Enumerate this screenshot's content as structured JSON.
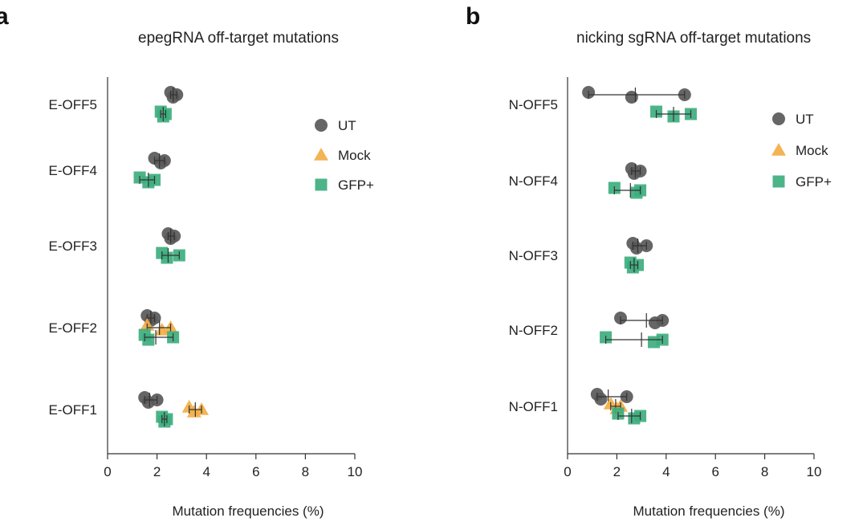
{
  "chart_data": [
    {
      "type": "scatter",
      "panel": "a",
      "title": "epegRNA off-target mutations",
      "xlabel": "Mutation frequencies (%)",
      "xlim": [
        0,
        10
      ],
      "xticks": [
        0,
        2,
        4,
        6,
        8,
        10
      ],
      "categories": [
        "E-OFF5",
        "E-OFF4",
        "E-OFF3",
        "E-OFF2",
        "E-OFF1"
      ],
      "legend": [
        {
          "name": "UT",
          "marker": "circle",
          "color": "#595959"
        },
        {
          "name": "Mock",
          "marker": "triangle",
          "color": "#F2AE45"
        },
        {
          "name": "GFP+",
          "marker": "square",
          "color": "#3DAE7E"
        }
      ],
      "series": [
        {
          "name": "UT",
          "groups": [
            {
              "category": "E-OFF5",
              "values": [
                2.55,
                2.65,
                2.8
              ],
              "mean": 2.65
            },
            {
              "category": "E-OFF4",
              "values": [
                1.9,
                2.15,
                2.3
              ],
              "mean": 2.1
            },
            {
              "category": "E-OFF3",
              "values": [
                2.45,
                2.55,
                2.7
              ],
              "mean": 2.55
            },
            {
              "category": "E-OFF2",
              "values": [
                1.6,
                1.75,
                1.9
              ],
              "mean": 1.75
            },
            {
              "category": "E-OFF1",
              "values": [
                1.5,
                1.65,
                2.0
              ],
              "mean": 1.7
            }
          ]
        },
        {
          "name": "Mock",
          "groups": [
            {
              "category": "E-OFF2",
              "values": [
                1.6,
                2.2,
                2.55
              ],
              "mean": 2.1
            },
            {
              "category": "E-OFF1",
              "values": [
                3.3,
                3.5,
                3.8
              ],
              "mean": 3.55
            }
          ]
        },
        {
          "name": "GFP+",
          "groups": [
            {
              "category": "E-OFF5",
              "values": [
                2.15,
                2.25,
                2.35
              ],
              "mean": 2.25
            },
            {
              "category": "E-OFF4",
              "values": [
                1.3,
                1.65,
                1.9
              ],
              "mean": 1.65
            },
            {
              "category": "E-OFF3",
              "values": [
                2.2,
                2.4,
                2.9
              ],
              "mean": 2.45
            },
            {
              "category": "E-OFF2",
              "values": [
                1.5,
                1.65,
                2.65
              ],
              "mean": 1.95
            },
            {
              "category": "E-OFF1",
              "values": [
                2.2,
                2.3,
                2.4
              ],
              "mean": 2.3
            }
          ]
        }
      ]
    },
    {
      "type": "scatter",
      "panel": "b",
      "title": "nicking sgRNA off-target mutations",
      "xlabel": "Mutation frequencies (%)",
      "xlim": [
        0,
        10
      ],
      "xticks": [
        0,
        2,
        4,
        6,
        8,
        10
      ],
      "categories": [
        "N-OFF5",
        "N-OFF4",
        "N-OFF3",
        "N-OFF2",
        "N-OFF1"
      ],
      "legend": [
        {
          "name": "UT",
          "marker": "circle",
          "color": "#595959"
        },
        {
          "name": "Mock",
          "marker": "triangle",
          "color": "#F2AE45"
        },
        {
          "name": "GFP+",
          "marker": "square",
          "color": "#3DAE7E"
        }
      ],
      "series": [
        {
          "name": "UT",
          "groups": [
            {
              "category": "N-OFF5",
              "values": [
                0.85,
                2.6,
                4.75
              ],
              "mean": 2.75
            },
            {
              "category": "N-OFF4",
              "values": [
                2.6,
                2.7,
                2.95
              ],
              "mean": 2.75
            },
            {
              "category": "N-OFF3",
              "values": [
                2.65,
                2.8,
                3.2
              ],
              "mean": 2.85
            },
            {
              "category": "N-OFF2",
              "values": [
                2.15,
                3.55,
                3.85
              ],
              "mean": 3.2
            },
            {
              "category": "N-OFF1",
              "values": [
                1.2,
                1.35,
                2.4
              ],
              "mean": 1.65
            }
          ]
        },
        {
          "name": "Mock",
          "groups": [
            {
              "category": "N-OFF1",
              "values": [
                1.75,
                2.0,
                2.15
              ],
              "mean": 1.95
            }
          ]
        },
        {
          "name": "GFP+",
          "groups": [
            {
              "category": "N-OFF5",
              "values": [
                3.6,
                4.3,
                5.0
              ],
              "mean": 4.3
            },
            {
              "category": "N-OFF4",
              "values": [
                1.9,
                2.8,
                2.95
              ],
              "mean": 2.55
            },
            {
              "category": "N-OFF3",
              "values": [
                2.55,
                2.65,
                2.85
              ],
              "mean": 2.7
            },
            {
              "category": "N-OFF2",
              "values": [
                1.55,
                3.5,
                3.85
              ],
              "mean": 3.0
            },
            {
              "category": "N-OFF1",
              "values": [
                2.05,
                2.7,
                2.95
              ],
              "mean": 2.6
            }
          ]
        }
      ]
    }
  ]
}
